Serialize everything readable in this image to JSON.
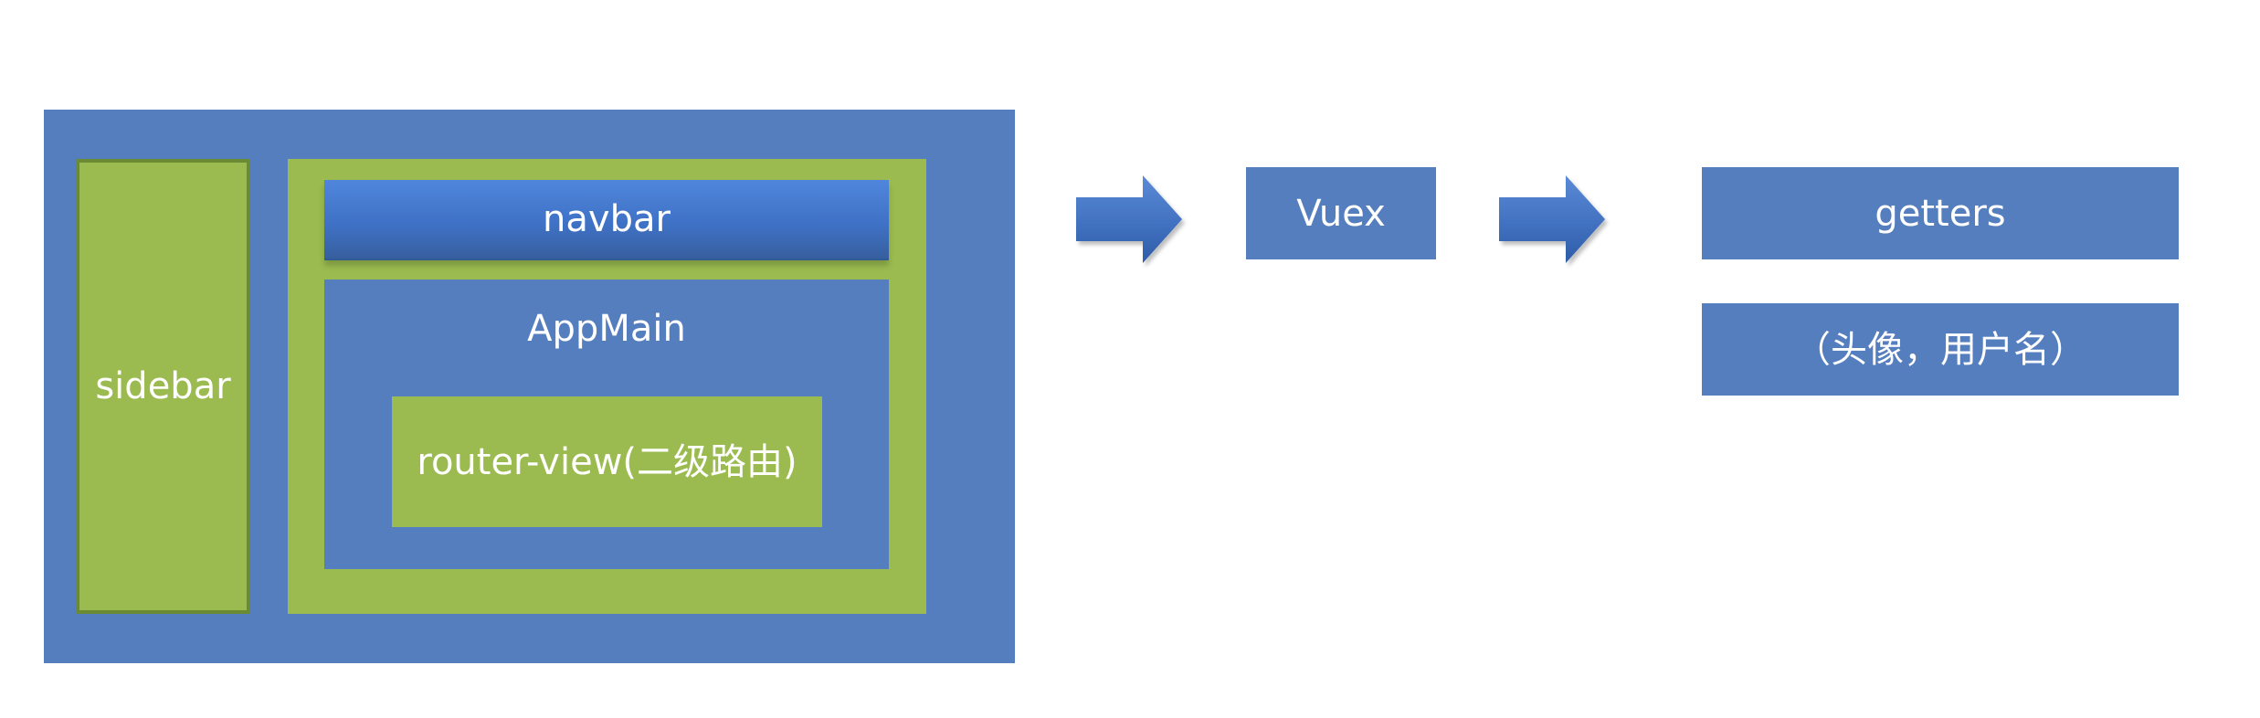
{
  "diagram": {
    "layout": {
      "sidebar_label": "sidebar",
      "navbar_label": "navbar",
      "appmain_label": "AppMain",
      "router_view_label": "router-view(二级路由)"
    },
    "flow": {
      "vuex_label": "Vuex",
      "getters_label": "getters",
      "detail_label": "（头像，用户名）"
    },
    "icons": {
      "arrow_1": "arrow-right-icon",
      "arrow_2": "arrow-right-icon"
    },
    "colors": {
      "blue": "#557ebf",
      "green": "#9bbb50",
      "navbar_blue": "#3f72c6",
      "white": "#ffffff"
    }
  }
}
